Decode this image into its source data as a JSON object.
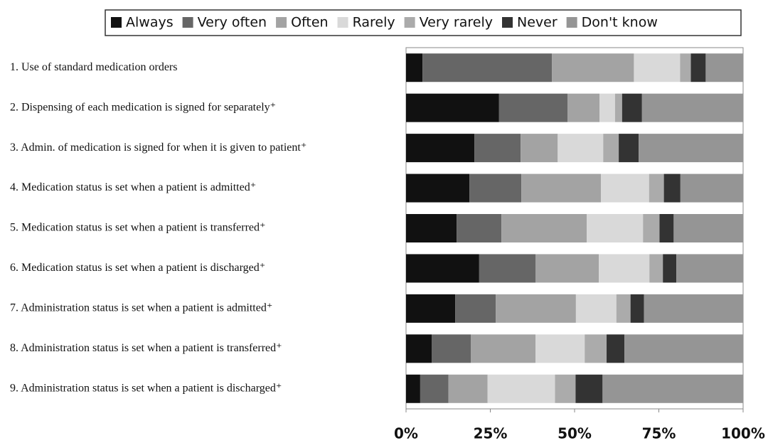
{
  "chart_data": {
    "type": "stacked-barh",
    "categories": [
      "1. Use of standard medication orders",
      "2. Dispensing of each medication is signed for separately⁺",
      "3. Admin. of medication is signed for when it is given to patient⁺",
      "4. Medication status is set when a patient is admitted⁺",
      "5. Medication status is set when a patient is transferred⁺",
      "6. Medication status is set when a patient is discharged⁺",
      "7. Administration status is set when a patient is admitted⁺",
      "8. Administration status is set when a patient is transferred⁺",
      "9. Administration status is set when a patient is discharged⁺"
    ],
    "series": [
      {
        "name": "Always",
        "color": "#111111",
        "values": [
          4.9,
          27.6,
          20.3,
          18.8,
          15.0,
          21.7,
          14.6,
          7.6,
          4.2
        ]
      },
      {
        "name": "Very often",
        "color": "#666666",
        "values": [
          38.4,
          20.3,
          13.7,
          15.4,
          13.3,
          16.7,
          12.0,
          11.6,
          8.4
        ]
      },
      {
        "name": "Often",
        "color": "#a3a3a3",
        "values": [
          24.3,
          9.5,
          11.0,
          23.6,
          25.3,
          18.8,
          23.8,
          19.2,
          11.6
        ]
      },
      {
        "name": "Rarely",
        "color": "#d9d9d9",
        "values": [
          13.7,
          4.6,
          13.5,
          14.3,
          16.7,
          15.0,
          12.0,
          14.6,
          20.0
        ]
      },
      {
        "name": "Very rarely",
        "color": "#ababab",
        "values": [
          3.2,
          2.1,
          4.6,
          4.4,
          4.9,
          4.0,
          4.2,
          6.5,
          6.1
        ]
      },
      {
        "name": "Never",
        "color": "#333333",
        "values": [
          4.4,
          5.9,
          5.9,
          4.9,
          4.2,
          4.0,
          4.0,
          5.3,
          8.0
        ]
      },
      {
        "name": "Don't know",
        "color": "#959595",
        "values": [
          11.1,
          30.0,
          31.0,
          18.6,
          20.6,
          19.8,
          29.4,
          35.2,
          41.7
        ]
      }
    ],
    "xlim": [
      0,
      100
    ],
    "xticks": [
      {
        "value": 0,
        "label": "0%"
      },
      {
        "value": 25,
        "label": "25%"
      },
      {
        "value": 50,
        "label": "50%"
      },
      {
        "value": 75,
        "label": "75%"
      },
      {
        "value": 100,
        "label": "100%"
      }
    ],
    "legend": "top"
  }
}
